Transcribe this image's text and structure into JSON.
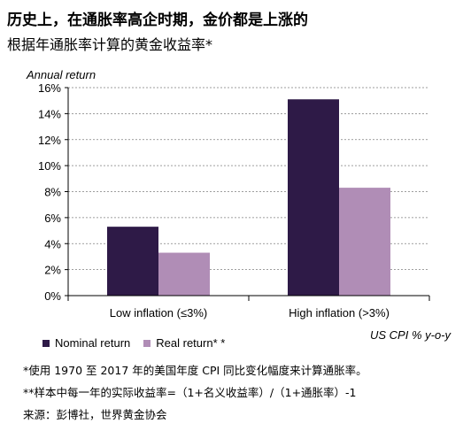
{
  "header": {
    "title": "历史上，在通胀率高企时期，金价都是上涨的",
    "subtitle": "根据年通胀率计算的黄金收益率*"
  },
  "chart_data": {
    "type": "bar",
    "ylabel": "Annual return",
    "xlabel_note": "US CPI % y-o-y",
    "categories": [
      "Low inflation (≤3%)",
      "High inflation (>3%)"
    ],
    "series": [
      {
        "name": "Nominal return",
        "color": "#2e1a47",
        "values": [
          5.3,
          15.1
        ]
      },
      {
        "name": "Real return* *",
        "color": "#b08db6",
        "values": [
          3.3,
          8.3
        ]
      }
    ],
    "ylim": [
      0,
      16
    ],
    "yticks": [
      0,
      2,
      4,
      6,
      8,
      10,
      12,
      14,
      16
    ],
    "ytick_labels": [
      "0%",
      "2%",
      "4%",
      "6%",
      "8%",
      "10%",
      "12%",
      "14%",
      "16%"
    ],
    "grid": true,
    "legend_position": "bottom-left"
  },
  "notes": [
    "*使用 1970 至 2017 年的美国年度 CPI 同比变化幅度来计算通胀率。",
    "**样本中每一年的实际收益率=（1+名义收益率）/（1+通胀率）-1",
    "来源：彭博社，世界黄金协会"
  ]
}
